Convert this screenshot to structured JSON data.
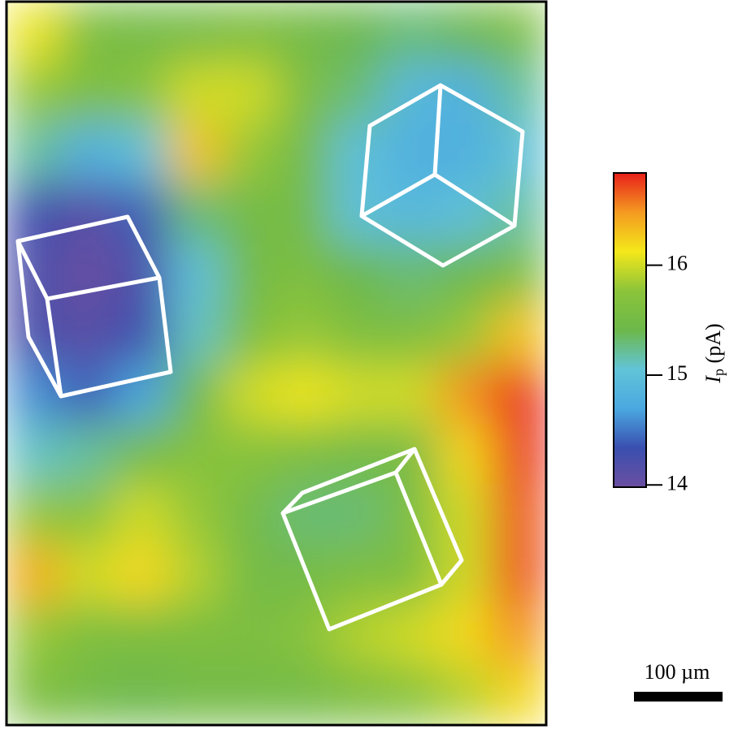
{
  "chart_data": {
    "type": "heatmap",
    "z": [
      [
        16.1,
        15.6,
        15.5,
        15.5,
        15.6,
        15.5,
        15.4,
        15.3,
        15.4,
        15.6
      ],
      [
        15.8,
        15.6,
        15.7,
        16.0,
        16.0,
        15.6,
        15.3,
        14.9,
        14.8,
        15.2
      ],
      [
        15.2,
        14.8,
        15.0,
        16.3,
        15.8,
        15.5,
        15.0,
        14.8,
        14.8,
        15.0
      ],
      [
        14.3,
        14.1,
        14.4,
        15.3,
        15.5,
        15.5,
        15.0,
        14.9,
        15.0,
        15.2
      ],
      [
        14.2,
        14.0,
        14.2,
        15.0,
        15.5,
        15.6,
        15.4,
        15.3,
        15.4,
        15.6
      ],
      [
        14.2,
        14.1,
        14.3,
        15.1,
        15.6,
        15.8,
        15.6,
        15.6,
        15.8,
        16.3
      ],
      [
        14.6,
        14.4,
        14.7,
        15.4,
        16.0,
        16.1,
        16.0,
        16.0,
        16.5,
        16.8
      ],
      [
        15.1,
        15.2,
        15.5,
        15.7,
        15.7,
        15.6,
        15.5,
        15.5,
        16.2,
        16.8
      ],
      [
        15.8,
        15.7,
        16.0,
        15.8,
        15.5,
        15.3,
        15.3,
        15.6,
        16.0,
        16.7
      ],
      [
        16.4,
        16.0,
        16.2,
        15.9,
        15.5,
        15.5,
        15.6,
        15.6,
        16.0,
        16.7
      ],
      [
        15.8,
        15.6,
        15.6,
        15.6,
        15.6,
        15.7,
        15.9,
        16.0,
        16.2,
        16.5
      ],
      [
        15.6,
        15.5,
        15.4,
        15.5,
        15.5,
        15.5,
        15.6,
        15.7,
        15.9,
        16.2
      ]
    ],
    "colormap": [
      "#6a4fa0",
      "#3a4fb0",
      "#4aa8e0",
      "#62c4d8",
      "#6cb84a",
      "#8cc43a",
      "#f4e81a",
      "#f49a20",
      "#e8201a"
    ],
    "colorbar": {
      "lim": [
        13.98,
        16.84
      ],
      "ticks": [
        14,
        15,
        16
      ],
      "label": {
        "symbol": "I",
        "subscript": "p",
        "unit": "(pA)"
      }
    },
    "scale_bar": "100 µm"
  }
}
